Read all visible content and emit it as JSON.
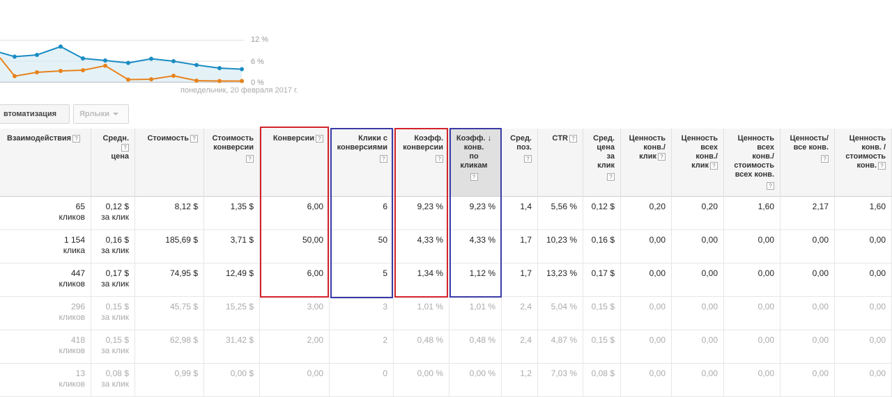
{
  "chart": {
    "y_ticks": [
      "12 %",
      "6 %",
      "0 %"
    ],
    "date_label": "понедельник, 20 февраля 2017 г.",
    "series": [
      {
        "name": "",
        "color": "#1a8cc3",
        "values": [
          8.5,
          7.3,
          7.8,
          10.2,
          6.8,
          6.2,
          5.5,
          6.7,
          6.0,
          4.9,
          4.0,
          3.7
        ]
      },
      {
        "name": "",
        "color": "#e8821c",
        "values": [
          7.0,
          1.7,
          2.8,
          3.2,
          3.4,
          4.7,
          0.7,
          0.8,
          1.8,
          0.4,
          0.3,
          0.3
        ]
      }
    ],
    "ylim": [
      0,
      12
    ]
  },
  "toolbar": {
    "automation_label": "втоматизация",
    "labels_label": "Ярлыки"
  },
  "table": {
    "headers": [
      {
        "lines": [
          "Взаимодействия"
        ],
        "inline_q": true
      },
      {
        "lines": [
          "Средн.",
          "цена"
        ],
        "q_after_first": true
      },
      {
        "lines": [
          "Стоимость"
        ],
        "inline_q": true
      },
      {
        "lines": [
          "Стоимость",
          "конверсии"
        ],
        "q_below": true
      },
      {
        "lines": [
          "Конверсии"
        ],
        "inline_q": true
      },
      {
        "lines": [
          "Клики с",
          "конверсиями"
        ],
        "q_below": true
      },
      {
        "lines": [
          "Коэфф.",
          "конверсии"
        ],
        "q_below": true
      },
      {
        "lines": [
          "Коэфф.",
          "конв.",
          "по",
          "кликам"
        ],
        "q_below": true,
        "sorted": true
      },
      {
        "lines": [
          "Сред.",
          "поз."
        ],
        "q_below": true
      },
      {
        "lines": [
          "CTR"
        ],
        "inline_q": true
      },
      {
        "lines": [
          "Сред.",
          "цена",
          "за",
          "клик"
        ],
        "q_below": true
      },
      {
        "lines": [
          "Ценность",
          "конв./",
          "клик"
        ],
        "inline_q_last": true
      },
      {
        "lines": [
          "Ценность",
          "всех",
          "конв./",
          "клик"
        ],
        "inline_q_last": true
      },
      {
        "lines": [
          "Ценность",
          "всех",
          "конв./",
          "стоимость",
          "всех конв."
        ],
        "q_below": true
      },
      {
        "lines": [
          "Ценность/",
          "все конв."
        ],
        "q_below": true
      },
      {
        "lines": [
          "Ценность",
          "конв. /",
          "стоимость",
          "конв."
        ],
        "inline_q_last": true
      }
    ],
    "rows": [
      {
        "dim": false,
        "cells": [
          [
            "65",
            "кликов"
          ],
          [
            "0,12 $",
            "за клик"
          ],
          [
            "8,12 $"
          ],
          [
            "1,35 $"
          ],
          [
            "6,00"
          ],
          [
            "6"
          ],
          [
            "9,23 %"
          ],
          [
            "9,23 %"
          ],
          [
            "1,4"
          ],
          [
            "5,56 %"
          ],
          [
            "0,12 $"
          ],
          [
            "0,20"
          ],
          [
            "0,20"
          ],
          [
            "1,60"
          ],
          [
            "2,17"
          ],
          [
            "1,60"
          ]
        ]
      },
      {
        "dim": false,
        "cells": [
          [
            "1 154",
            "клика"
          ],
          [
            "0,16 $",
            "за клик"
          ],
          [
            "185,69 $"
          ],
          [
            "3,71 $"
          ],
          [
            "50,00"
          ],
          [
            "50"
          ],
          [
            "4,33 %"
          ],
          [
            "4,33 %"
          ],
          [
            "1,7"
          ],
          [
            "10,23 %"
          ],
          [
            "0,16 $"
          ],
          [
            "0,00"
          ],
          [
            "0,00"
          ],
          [
            "0,00"
          ],
          [
            "0,00"
          ],
          [
            "0,00"
          ]
        ]
      },
      {
        "dim": false,
        "cells": [
          [
            "447",
            "кликов"
          ],
          [
            "0,17 $",
            "за клик"
          ],
          [
            "74,95 $"
          ],
          [
            "12,49 $"
          ],
          [
            "6,00"
          ],
          [
            "5"
          ],
          [
            "1,34 %"
          ],
          [
            "1,12 %"
          ],
          [
            "1,7"
          ],
          [
            "13,23 %"
          ],
          [
            "0,17 $"
          ],
          [
            "0,00"
          ],
          [
            "0,00"
          ],
          [
            "0,00"
          ],
          [
            "0,00"
          ],
          [
            "0,00"
          ]
        ]
      },
      {
        "dim": true,
        "cells": [
          [
            "296",
            "кликов"
          ],
          [
            "0,15 $",
            "за клик"
          ],
          [
            "45,75 $"
          ],
          [
            "15,25 $"
          ],
          [
            "3,00"
          ],
          [
            "3"
          ],
          [
            "1,01 %"
          ],
          [
            "1,01 %"
          ],
          [
            "2,4"
          ],
          [
            "5,04 %"
          ],
          [
            "0,15 $"
          ],
          [
            "0,00"
          ],
          [
            "0,00"
          ],
          [
            "0,00"
          ],
          [
            "0,00"
          ],
          [
            "0,00"
          ]
        ]
      },
      {
        "dim": true,
        "cells": [
          [
            "418",
            "кликов"
          ],
          [
            "0,15 $",
            "за клик"
          ],
          [
            "62,98 $"
          ],
          [
            "31,42 $"
          ],
          [
            "2,00"
          ],
          [
            "2"
          ],
          [
            "0,48 %"
          ],
          [
            "0,48 %"
          ],
          [
            "2,4"
          ],
          [
            "4,87 %"
          ],
          [
            "0,15 $"
          ],
          [
            "0,00"
          ],
          [
            "0,00"
          ],
          [
            "0,00"
          ],
          [
            "0,00"
          ],
          [
            "0,00"
          ]
        ]
      },
      {
        "dim": true,
        "cells": [
          [
            "13",
            "кликов"
          ],
          [
            "0,08 $",
            "за клик"
          ],
          [
            "0,99 $"
          ],
          [
            "0,00 $"
          ],
          [
            "0,00"
          ],
          [
            "0"
          ],
          [
            "0,00 %"
          ],
          [
            "0,00 %"
          ],
          [
            "1,2"
          ],
          [
            "7,03 %"
          ],
          [
            "0,08 $"
          ],
          [
            "0,00"
          ],
          [
            "0,00"
          ],
          [
            "0,00"
          ],
          [
            "0,00"
          ],
          [
            "0,00"
          ]
        ]
      }
    ]
  },
  "colors": {
    "highlight_red": "#d3222a",
    "highlight_blue": "#3a3aa8"
  }
}
